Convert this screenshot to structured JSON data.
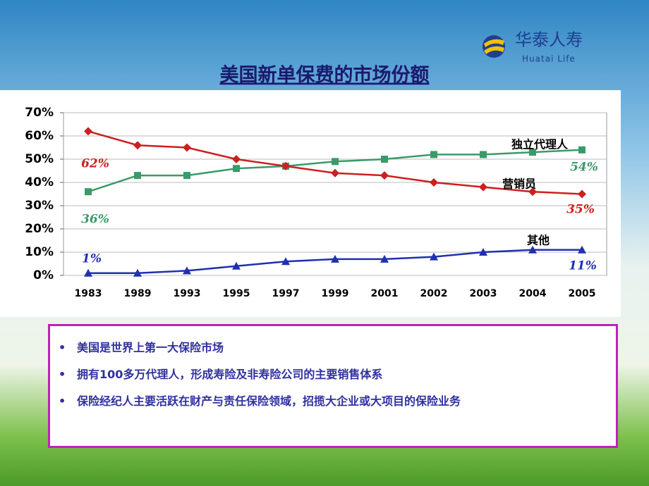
{
  "logo": {
    "name": "华泰人寿",
    "subtitle": "Huatai Life"
  },
  "chart_data": {
    "type": "line",
    "title": "美国新单保费的市场份额",
    "categories": [
      "1983",
      "1989",
      "1993",
      "1995",
      "1997",
      "1999",
      "2001",
      "2002",
      "2003",
      "2004",
      "2005"
    ],
    "series": [
      {
        "name": "独立代理人",
        "color": "#3a9a6a",
        "marker": "square",
        "values": [
          36,
          43,
          43,
          46,
          47,
          49,
          50,
          52,
          52,
          53,
          54
        ],
        "value_labels": [
          "36%",
          null,
          null,
          null,
          null,
          null,
          null,
          null,
          null,
          null,
          "54%"
        ]
      },
      {
        "name": "营销员",
        "color": "#cc2020",
        "marker": "diamond",
        "values": [
          62,
          56,
          55,
          50,
          47,
          44,
          43,
          40,
          38,
          36,
          35
        ],
        "value_labels": [
          "62%",
          null,
          null,
          null,
          null,
          null,
          null,
          null,
          null,
          null,
          "35%"
        ]
      },
      {
        "name": "其他",
        "color": "#2030b0",
        "marker": "triangle",
        "values": [
          1,
          1,
          2,
          4,
          6,
          7,
          7,
          8,
          10,
          11,
          11
        ],
        "value_labels": [
          "1%",
          null,
          null,
          null,
          null,
          null,
          null,
          null,
          null,
          null,
          "11%"
        ]
      }
    ],
    "ylim": [
      0,
      70
    ],
    "yticks": [
      {
        "value": 0,
        "label": "0%"
      },
      {
        "value": 10,
        "label": "10%"
      },
      {
        "value": 20,
        "label": "20%"
      },
      {
        "value": 30,
        "label": "30%"
      },
      {
        "value": 40,
        "label": "40%"
      },
      {
        "value": 50,
        "label": "50%"
      },
      {
        "value": 60,
        "label": "60%"
      },
      {
        "value": 70,
        "label": "70%"
      }
    ],
    "grid": true
  },
  "bullets": [
    "美国是世界上第一大保险市场",
    "拥有100多万代理人，形成寿险及非寿险公司的主要销售体系",
    "保险经纪人主要活跃在财产与责任保险领域，招揽大企业或大项目的保险业务"
  ]
}
